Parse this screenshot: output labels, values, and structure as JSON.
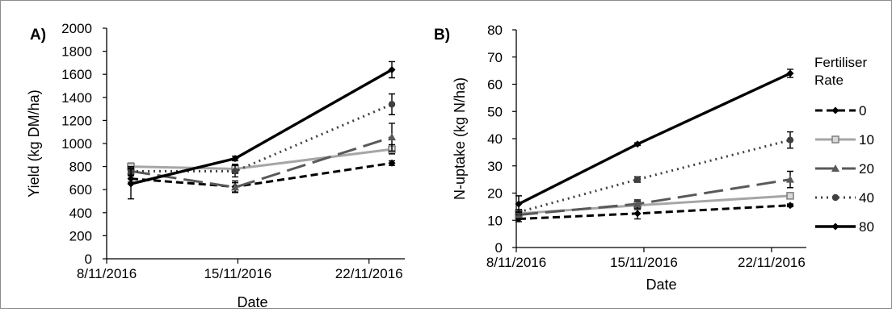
{
  "legend": {
    "title_line1": "Fertiliser",
    "title_line2": "Rate",
    "items": [
      "0",
      "10",
      "20",
      "40",
      "80"
    ]
  },
  "colors": {
    "0": "#000000",
    "10": "#a6a6a6",
    "20": "#595959",
    "40": "#404040",
    "80": "#000000"
  },
  "chart_data": [
    {
      "type": "line",
      "panel_label": "A)",
      "xlabel": "Date",
      "ylabel": "Yield (kg DM/ha)",
      "x": [
        "8/11/2016",
        "15/11/2016",
        "22/11/2016"
      ],
      "ylim": [
        0,
        2000
      ],
      "ytick_step": 200,
      "series": [
        {
          "name": "0",
          "values": [
            695,
            625,
            830
          ],
          "errors": [
            30,
            50,
            20
          ]
        },
        {
          "name": "10",
          "values": [
            800,
            780,
            950
          ],
          "errors": [
            30,
            40,
            40
          ]
        },
        {
          "name": "20",
          "values": [
            760,
            620,
            1055
          ],
          "errors": [
            30,
            40,
            120
          ]
        },
        {
          "name": "40",
          "values": [
            760,
            760,
            1340
          ],
          "errors": [
            40,
            50,
            90
          ]
        },
        {
          "name": "80",
          "values": [
            650,
            870,
            1640
          ],
          "errors": [
            130,
            20,
            70
          ]
        }
      ]
    },
    {
      "type": "line",
      "panel_label": "B)",
      "xlabel": "Date",
      "ylabel": "N-uptake (kg N/ha)",
      "x": [
        "8/11/2016",
        "15/11/2016",
        "22/11/2016"
      ],
      "ylim": [
        0,
        80
      ],
      "ytick_step": 10,
      "series": [
        {
          "name": "0",
          "values": [
            10.5,
            12.5,
            15.5
          ],
          "errors": [
            1,
            2,
            0.5
          ]
        },
        {
          "name": "10",
          "values": [
            12.5,
            15.5,
            19
          ],
          "errors": [
            1,
            1.5,
            1
          ]
        },
        {
          "name": "20",
          "values": [
            12,
            16,
            25
          ],
          "errors": [
            1,
            1.5,
            3
          ]
        },
        {
          "name": "40",
          "values": [
            13,
            25,
            39.5
          ],
          "errors": [
            1,
            1,
            3
          ]
        },
        {
          "name": "80",
          "values": [
            16,
            38,
            64
          ],
          "errors": [
            3,
            0.5,
            1.5
          ]
        }
      ]
    }
  ]
}
